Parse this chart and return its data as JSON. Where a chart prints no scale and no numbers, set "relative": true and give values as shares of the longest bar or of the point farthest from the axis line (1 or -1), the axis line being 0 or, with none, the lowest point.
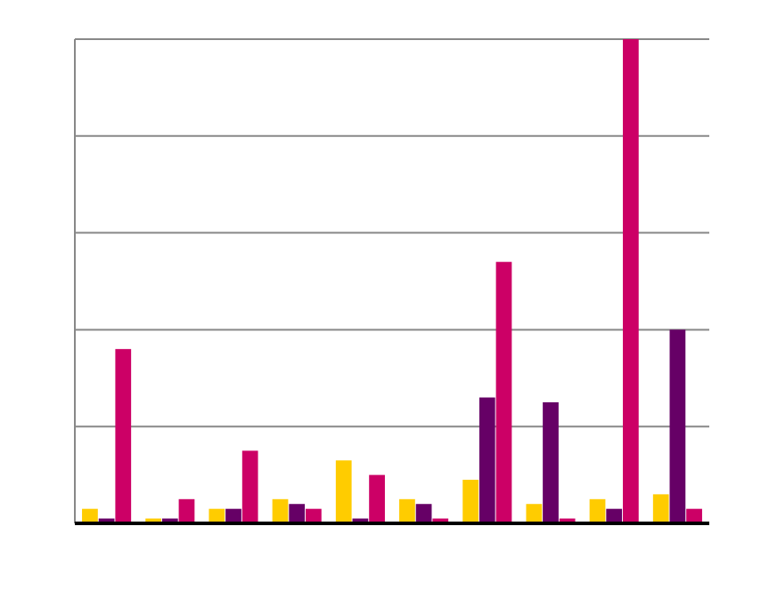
{
  "chart_data": {
    "type": "bar",
    "relative": true,
    "grid": true,
    "categories": [
      null,
      null,
      null,
      null,
      null,
      null,
      null,
      null,
      null,
      null
    ],
    "series": [
      {
        "color": "#ffcc00",
        "values": [
          0.03,
          0.01,
          0.03,
          0.05,
          0.13,
          0.05,
          0.09,
          0.04,
          0.05,
          0.06
        ]
      },
      {
        "color": "#660066",
        "values": [
          0.01,
          0.01,
          0.03,
          0.04,
          0.01,
          0.04,
          0.26,
          0.25,
          0.03,
          0.4
        ]
      },
      {
        "color": "#cc0066",
        "values": [
          0.36,
          0.05,
          0.15,
          0.03,
          0.1,
          0.01,
          0.54,
          0.01,
          1,
          0.03
        ]
      }
    ]
  }
}
